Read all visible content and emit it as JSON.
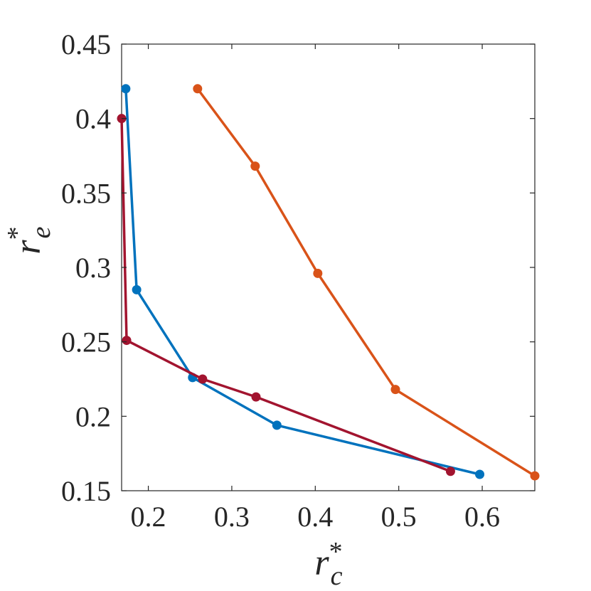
{
  "chart_data": {
    "type": "line",
    "xlabel": "r",
    "xlabel_sup": "*",
    "xlabel_sub": "c",
    "ylabel": "r",
    "ylabel_sup": "*",
    "ylabel_sub": "e",
    "xlim": [
      0.168,
      0.663
    ],
    "ylim": [
      0.15,
      0.45
    ],
    "xticks": [
      0.2,
      0.3,
      0.4,
      0.5,
      0.6
    ],
    "xtick_labels": [
      "0.2",
      "0.3",
      "0.4",
      "0.5",
      "0.6"
    ],
    "yticks": [
      0.15,
      0.2,
      0.25,
      0.3,
      0.35,
      0.4,
      0.45
    ],
    "ytick_labels": [
      "0.15",
      "0.2",
      "0.25",
      "0.3",
      "0.35",
      "0.4",
      "0.45"
    ],
    "grid": false,
    "series": [
      {
        "color": "#0072BD",
        "x": [
          0.173,
          0.186,
          0.253,
          0.354,
          0.597
        ],
        "y": [
          0.42,
          0.285,
          0.226,
          0.194,
          0.161
        ]
      },
      {
        "color": "#D95319",
        "x": [
          0.259,
          0.328,
          0.403,
          0.496,
          0.663
        ],
        "y": [
          0.42,
          0.368,
          0.296,
          0.218,
          0.16
        ]
      },
      {
        "color": "#A2142F",
        "x": [
          0.168,
          0.174,
          0.265,
          0.329,
          0.562
        ],
        "y": [
          0.4,
          0.251,
          0.225,
          0.213,
          0.163
        ]
      }
    ]
  }
}
